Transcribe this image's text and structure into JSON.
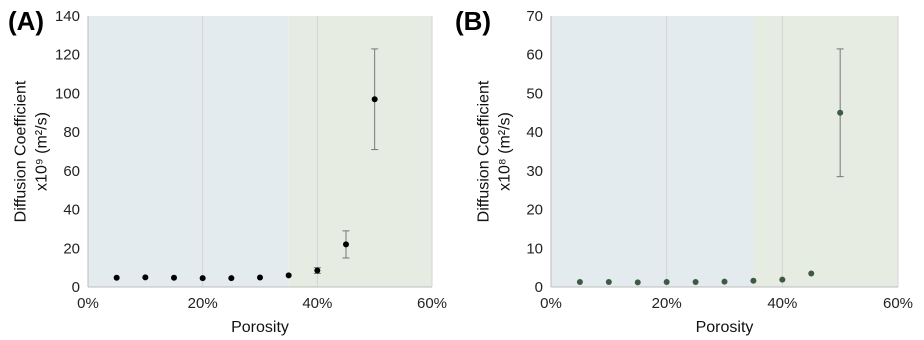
{
  "chart_data": [
    {
      "type": "scatter",
      "panel_label": "(A)",
      "xlabel": "Porosity",
      "ylabel": "Diffusion Coefficient",
      "ylabel_line2": "x10⁹ (m²/s)",
      "xlim": [
        0,
        60
      ],
      "ylim": [
        0,
        140
      ],
      "xticks": [
        0,
        20,
        40,
        60
      ],
      "yticks": [
        0,
        20,
        40,
        60,
        80,
        100,
        120,
        140
      ],
      "xtick_labels": [
        "0%",
        "20%",
        "40%",
        "60%"
      ],
      "ytick_labels": [
        "0",
        "20",
        "40",
        "60",
        "80",
        "100",
        "120",
        "140"
      ],
      "grid": "vertical",
      "regions": [
        {
          "x_from": 0,
          "x_to": 35,
          "color": "#e4ebef"
        },
        {
          "x_from": 35,
          "x_to": 60,
          "color": "#e6ece2"
        }
      ],
      "marker_color": "#000000",
      "error_bar_color": "#777777",
      "points": [
        {
          "x": 5,
          "y": 4.8,
          "err": 0
        },
        {
          "x": 10,
          "y": 5.0,
          "err": 0
        },
        {
          "x": 15,
          "y": 4.8,
          "err": 0
        },
        {
          "x": 20,
          "y": 4.6,
          "err": 0
        },
        {
          "x": 25,
          "y": 4.6,
          "err": 0
        },
        {
          "x": 30,
          "y": 4.9,
          "err": 0
        },
        {
          "x": 35,
          "y": 6.0,
          "err": 0
        },
        {
          "x": 40,
          "y": 8.5,
          "err": 1.5
        },
        {
          "x": 45,
          "y": 22.0,
          "err": 7.0
        },
        {
          "x": 50,
          "y": 97.0,
          "err": 26.0
        }
      ]
    },
    {
      "type": "scatter",
      "panel_label": "(B)",
      "xlabel": "Porosity",
      "ylabel": "Diffusion Coefficient",
      "ylabel_line2": "x10⁸ (m²/s)",
      "xlim": [
        0,
        60
      ],
      "ylim": [
        0,
        70
      ],
      "xticks": [
        0,
        20,
        40,
        60
      ],
      "yticks": [
        0,
        10,
        20,
        30,
        40,
        50,
        60,
        70
      ],
      "xtick_labels": [
        "0%",
        "20%",
        "40%",
        "60%"
      ],
      "ytick_labels": [
        "0",
        "10",
        "20",
        "30",
        "40",
        "50",
        "60",
        "70"
      ],
      "grid": "vertical",
      "regions": [
        {
          "x_from": 0,
          "x_to": 35,
          "color": "#e4ebef"
        },
        {
          "x_from": 35,
          "x_to": 60,
          "color": "#e6ece2"
        }
      ],
      "marker_color": "#3d5a45",
      "error_bar_color": "#777777",
      "points": [
        {
          "x": 5,
          "y": 1.3,
          "err": 0
        },
        {
          "x": 10,
          "y": 1.3,
          "err": 0
        },
        {
          "x": 15,
          "y": 1.2,
          "err": 0
        },
        {
          "x": 20,
          "y": 1.3,
          "err": 0
        },
        {
          "x": 25,
          "y": 1.3,
          "err": 0
        },
        {
          "x": 30,
          "y": 1.4,
          "err": 0
        },
        {
          "x": 35,
          "y": 1.6,
          "err": 0
        },
        {
          "x": 40,
          "y": 1.9,
          "err": 0
        },
        {
          "x": 45,
          "y": 3.5,
          "err": 0
        },
        {
          "x": 50,
          "y": 45.0,
          "err": 16.5
        }
      ]
    }
  ]
}
